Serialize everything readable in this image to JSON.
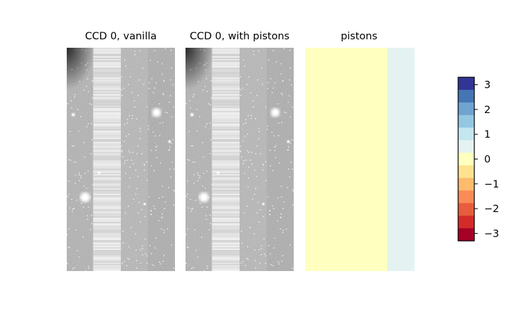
{
  "chart_data": {
    "type": "heatmap",
    "panels": [
      {
        "title": "CCD 0, vanilla",
        "colormap": "gray",
        "columns": [
          {
            "level": 0.7,
            "texture": "noise"
          },
          {
            "level": 0.88,
            "texture": "stripes"
          },
          {
            "level": 0.72,
            "texture": "noise"
          },
          {
            "level": 0.68,
            "texture": "noise"
          }
        ],
        "sources": [
          {
            "x": 0.17,
            "y": 0.67,
            "size": 1.0
          },
          {
            "x": 0.83,
            "y": 0.29,
            "size": 0.9
          },
          {
            "x": 0.06,
            "y": 0.3,
            "size": 0.35
          },
          {
            "x": 0.3,
            "y": 0.56,
            "size": 0.3
          },
          {
            "x": 0.95,
            "y": 0.42,
            "size": 0.3
          },
          {
            "x": 0.72,
            "y": 0.7,
            "size": 0.25
          }
        ]
      },
      {
        "title": "CCD 0, with pistons",
        "colormap": "gray",
        "columns": [
          {
            "level": 0.7,
            "texture": "noise"
          },
          {
            "level": 0.88,
            "texture": "stripes"
          },
          {
            "level": 0.72,
            "texture": "noise"
          },
          {
            "level": 0.68,
            "texture": "noise"
          }
        ],
        "sources": [
          {
            "x": 0.17,
            "y": 0.67,
            "size": 1.0
          },
          {
            "x": 0.83,
            "y": 0.29,
            "size": 0.9
          },
          {
            "x": 0.06,
            "y": 0.3,
            "size": 0.35
          },
          {
            "x": 0.3,
            "y": 0.56,
            "size": 0.3
          },
          {
            "x": 0.95,
            "y": 0.42,
            "size": 0.3
          },
          {
            "x": 0.72,
            "y": 0.7,
            "size": 0.25
          }
        ]
      },
      {
        "title": "pistons",
        "colormap": "RdYlBu",
        "columns": [
          {
            "value": 0.0,
            "width_fraction": 0.75
          },
          {
            "value": 0.6,
            "width_fraction": 0.25
          }
        ]
      }
    ],
    "colorbar": {
      "colormap": "RdYlBu",
      "vmin": -3.3,
      "vmax": 3.3,
      "levels": 13,
      "ticks": [
        3,
        2,
        1,
        0,
        -1,
        -2,
        -3
      ],
      "tick_labels": [
        "3",
        "2",
        "1",
        "0",
        "−1",
        "−2",
        "−3"
      ],
      "colors": [
        "#313695",
        "#4575b4",
        "#6fa3d0",
        "#94c7e1",
        "#c4e6f1",
        "#e4f3f1",
        "#ffffbf",
        "#fee290",
        "#fdbb6c",
        "#f98b57",
        "#e75d3d",
        "#d42b2a",
        "#a50026"
      ]
    }
  }
}
